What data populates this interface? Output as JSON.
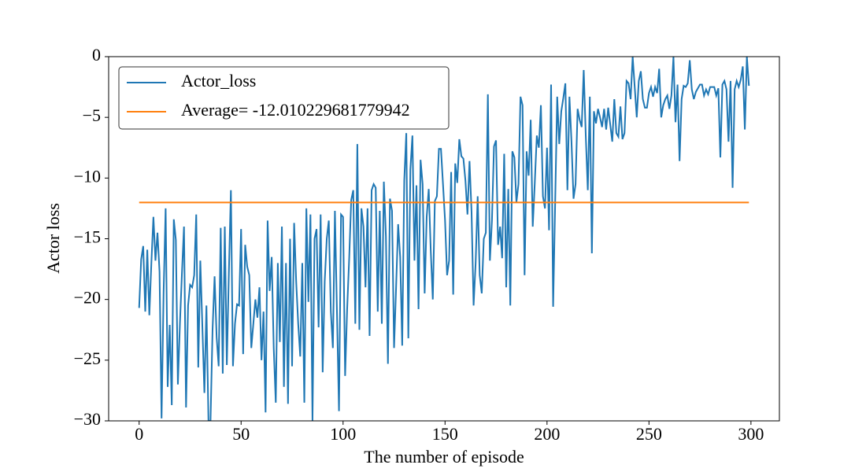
{
  "chart_data": {
    "type": "line",
    "xlabel": "The number of episode",
    "ylabel": "Actor loss",
    "xlim": [
      -14.95,
      313.95
    ],
    "ylim": [
      -30,
      0
    ],
    "xticks": [
      0,
      50,
      100,
      150,
      200,
      250,
      300
    ],
    "yticks": [
      {
        "value": -30,
        "label": "−30"
      },
      {
        "value": -25,
        "label": "−25"
      },
      {
        "value": -20,
        "label": "−20"
      },
      {
        "value": -15,
        "label": "−15"
      },
      {
        "value": -10,
        "label": "−10"
      },
      {
        "value": -5,
        "label": "−5"
      },
      0
    ],
    "legend": "upper left",
    "series": [
      {
        "name": "Actor_loss",
        "color": "#1f77b4",
        "values": [
          -20.7,
          -16.7,
          -15.6,
          -21,
          -15.9,
          -21.3,
          -17,
          -13.2,
          -16.8,
          -14.5,
          -17.7,
          -29.8,
          -19.4,
          -12.5,
          -27.2,
          -22.1,
          -28.7,
          -13.4,
          -15.1,
          -27,
          -22,
          -17.8,
          -14,
          -28.9,
          -20.5,
          -18.8,
          -19,
          -18,
          -13,
          -25.6,
          -16.8,
          -22.2,
          -27.7,
          -20.5,
          -30,
          -30,
          -22.5,
          -18.1,
          -23.1,
          -25.5,
          -14.1,
          -26.1,
          -14,
          -25.4,
          -17.8,
          -11,
          -25.5,
          -22,
          -20.4,
          -20.5,
          -14.2,
          -24.5,
          -15.5,
          -17.3,
          -18,
          -24,
          -22,
          -20,
          -21.5,
          -19,
          -25,
          -21,
          -29.3,
          -13.5,
          -19.3,
          -16.5,
          -24,
          -28.5,
          -17,
          -23.5,
          -14,
          -27.2,
          -17,
          -28.6,
          -15,
          -25.5,
          -13.7,
          -18.5,
          -22,
          -24.7,
          -17,
          -28.5,
          -12.5,
          -20.2,
          -13,
          -30,
          -15,
          -14.2,
          -22.3,
          -13,
          -26,
          -18.5,
          -15,
          -13.5,
          -21,
          -24,
          -12.7,
          -21,
          -29.2,
          -13,
          -13.2,
          -26.3,
          -20.8,
          -16.6,
          -11.8,
          -11,
          -22,
          -7.2,
          -22.5,
          -12.5,
          -14,
          -19,
          -12.5,
          -23,
          -11,
          -10.5,
          -10.8,
          -21,
          -12.7,
          -22,
          -10.3,
          -14.8,
          -25.3,
          -11.7,
          -12.7,
          -24,
          -19,
          -13.8,
          -16.5,
          -23.8,
          -10.2,
          -6.3,
          -23.2,
          -9.3,
          -6.5,
          -16.8,
          -10.6,
          -20.8,
          -8.5,
          -10.5,
          -19.5,
          -13.2,
          -10.9,
          -16,
          -20,
          -11.9,
          -11.5,
          -7.6,
          -7.6,
          -10.5,
          -13.5,
          -18,
          -16.8,
          -9.5,
          -19.6,
          -8.8,
          -10.4,
          -6.8,
          -8.2,
          -8.4,
          -10.2,
          -13,
          -8.6,
          -12.8,
          -20.5,
          -17,
          -11.5,
          -18,
          -19.5,
          -15,
          -14.5,
          -3.1,
          -16.8,
          -13.5,
          -7.4,
          -6.9,
          -15.5,
          -14,
          -16.6,
          -8,
          -19,
          -10.9,
          -20.5,
          -7.8,
          -8.3,
          -12,
          -10.5,
          -3.3,
          -4,
          -18,
          -7.8,
          -9.8,
          -5.2,
          -14,
          -10.4,
          -6.5,
          -7.5,
          -4,
          -11.5,
          -12.5,
          -7.5,
          -14.3,
          -2.3,
          -20.6,
          -12,
          -3.3,
          -7.2,
          -4.5,
          -3.4,
          -2.2,
          -11,
          -3.3,
          -7,
          -11.7,
          -10.5,
          -4.3,
          -5.2,
          -5.8,
          -1.1,
          -6.5,
          -11,
          -3.3,
          -16.2,
          -4.5,
          -5.5,
          -4.3,
          -5,
          -5.8,
          -4.3,
          -6,
          -4.2,
          -5.6,
          -7,
          -3.5,
          -6.3,
          -6.6,
          -4.1,
          -6.8,
          -6.3,
          -2,
          -2.2,
          -3.5,
          0,
          -2.5,
          -5,
          -2,
          -1.2,
          -3.5,
          -4.2,
          -4.2,
          -3,
          -2.5,
          -3.3,
          -2.5,
          -3,
          -1,
          -5,
          -4,
          -3.5,
          -3.2,
          -4.3,
          -3.2,
          0,
          -5.4,
          -2.3,
          -8.6,
          -3.5,
          -2.4,
          -2.5,
          -2.2,
          -0.3,
          -2.7,
          -3.5,
          -2.9,
          -2.6,
          -2.3,
          -2.3,
          -3.2,
          -2.7,
          -3.1,
          -2.5,
          -2.5,
          -2.5,
          -3.2,
          -2.6,
          -8.3,
          -2.3,
          -2,
          -2.7,
          -7,
          -2,
          -10.8,
          -2.7,
          -2,
          -2.5,
          -1.9,
          -0.8,
          -6,
          0,
          -2.4
        ]
      },
      {
        "name": "Average= -12.010229681779942",
        "color": "#ff7f0e",
        "x": [
          0,
          299
        ],
        "values": [
          -12.010229681779942,
          -12.010229681779942
        ]
      }
    ]
  }
}
